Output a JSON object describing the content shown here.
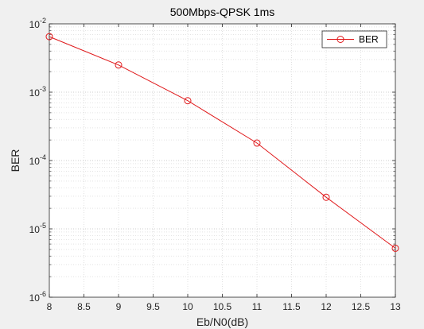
{
  "chart_data": {
    "type": "line",
    "title": "500Mbps-QPSK 1ms",
    "xlabel": "Eb/N0(dB)",
    "ylabel": "BER",
    "xlim": [
      8,
      13
    ],
    "ylim": [
      1e-06,
      0.01
    ],
    "yscale": "log",
    "grid": true,
    "minor_grid": true,
    "legend_position": "top-right",
    "x_ticks": [
      "8",
      "8.5",
      "9",
      "9.5",
      "10",
      "10.5",
      "11",
      "11.5",
      "12",
      "12.5",
      "13"
    ],
    "y_ticks": [
      {
        "base": "10",
        "exp": "-6"
      },
      {
        "base": "10",
        "exp": "-5"
      },
      {
        "base": "10",
        "exp": "-4"
      },
      {
        "base": "10",
        "exp": "-3"
      },
      {
        "base": "10",
        "exp": "-2"
      }
    ],
    "series": [
      {
        "name": "BER",
        "color": "#e0191b",
        "marker": "circle",
        "x": [
          8,
          9,
          10,
          11,
          12,
          13
        ],
        "y": [
          0.0065,
          0.0025,
          0.00075,
          0.00018,
          2.9e-05,
          5.2e-06
        ]
      }
    ]
  },
  "colors": {
    "figure_background": "#f0f0f0",
    "axes_background": "#ffffff",
    "axes_color": "#262626",
    "grid_color": "#d4d4d4"
  }
}
